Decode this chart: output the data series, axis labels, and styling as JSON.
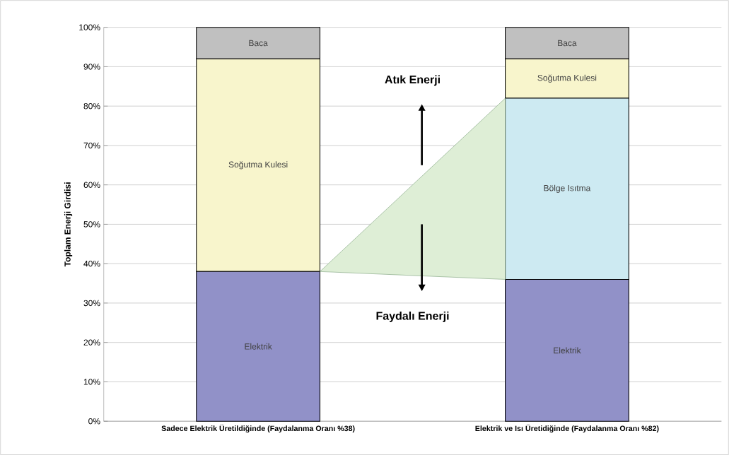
{
  "chart_data": {
    "type": "bar",
    "stacked": true,
    "ylabel": "Toplam Enerji Girdisi",
    "categories": [
      "Sadece Elektrik Üretildiğinde (Faydalanma Oranı %38)",
      "Elektrik ve Isı Üretidiğinde (Faydalanma Oranı %82)"
    ],
    "series": [
      {
        "name": "Elektrik",
        "color": "#9191c8",
        "values": [
          38,
          36
        ]
      },
      {
        "name": "Bölge Isıtma",
        "color": "#cdeaf2",
        "values": [
          0,
          46
        ]
      },
      {
        "name": "Soğutma Kulesi",
        "color": "#f8f5cc",
        "values": [
          54,
          10
        ]
      },
      {
        "name": "Baca",
        "color": "#c0c0c0",
        "values": [
          8,
          8
        ]
      }
    ],
    "ylim": [
      0,
      100
    ],
    "yticks": [
      {
        "value": 0,
        "label": "0%"
      },
      {
        "value": 10,
        "label": "10%"
      },
      {
        "value": 20,
        "label": "20%"
      },
      {
        "value": 30,
        "label": "30%"
      },
      {
        "value": 40,
        "label": "40%"
      },
      {
        "value": 50,
        "label": "50%"
      },
      {
        "value": 60,
        "label": "60%"
      },
      {
        "value": 70,
        "label": "70%"
      },
      {
        "value": 80,
        "label": "80%"
      },
      {
        "value": 90,
        "label": "90%"
      },
      {
        "value": 100,
        "label": "100%"
      }
    ],
    "grid": "y",
    "annotations": [
      "Atık Enerji",
      "Faydalı Enerji"
    ]
  }
}
